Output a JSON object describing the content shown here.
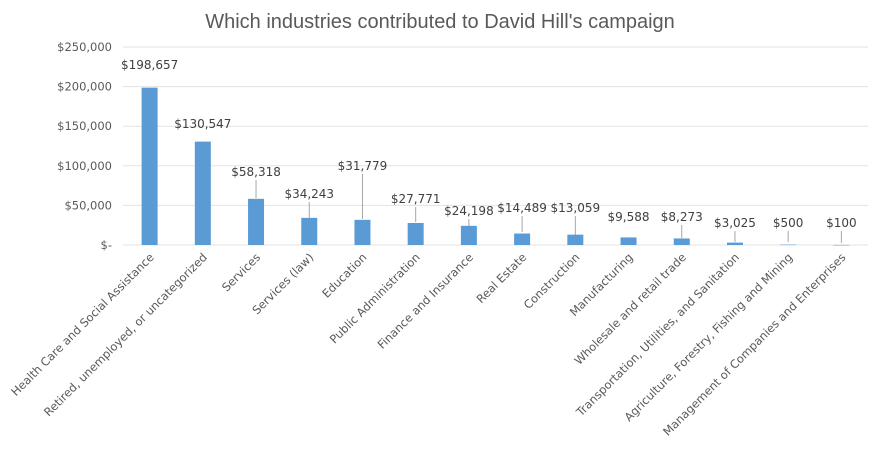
{
  "chart_data": {
    "type": "bar",
    "title": "Which industries contributed to David Hill's campaign",
    "xlabel": "",
    "ylabel": "",
    "ylim": [
      0,
      250000
    ],
    "grid": true,
    "legend": "none",
    "y_ticks": [
      {
        "value": 0,
        "label": "$-"
      },
      {
        "value": 50000,
        "label": "$50,000"
      },
      {
        "value": 100000,
        "label": "$100,000"
      },
      {
        "value": 150000,
        "label": "$150,000"
      },
      {
        "value": 200000,
        "label": "$200,000"
      },
      {
        "value": 250000,
        "label": "$250,000"
      }
    ],
    "categories": [
      "Health Care and Social Assistance",
      "Retired, unemployed, or uncategorized",
      "Services",
      "Services (law)",
      "Education",
      "Public Administration",
      "Finance and Insurance",
      "Real Estate",
      "Construction",
      "Manufacturing",
      "Wholesale and retail trade",
      "Transportation, Utilities, and Sanitation",
      "Agriculture, Forestry, Fishing and Mining",
      "Management of Companies and Enterprises"
    ],
    "values": [
      198657,
      130547,
      58318,
      34243,
      31779,
      27771,
      24198,
      14489,
      13059,
      9588,
      8273,
      3025,
      500,
      100
    ],
    "data_labels": [
      "$198,657",
      "$130,547",
      "$58,318",
      "$34,243",
      "$31,779",
      "$27,771",
      "$24,198",
      "$14,489",
      "$13,059",
      "$9,588",
      "$8,273",
      "$3,025",
      "$500",
      "$100"
    ],
    "bar_color": "#5b9bd5"
  }
}
